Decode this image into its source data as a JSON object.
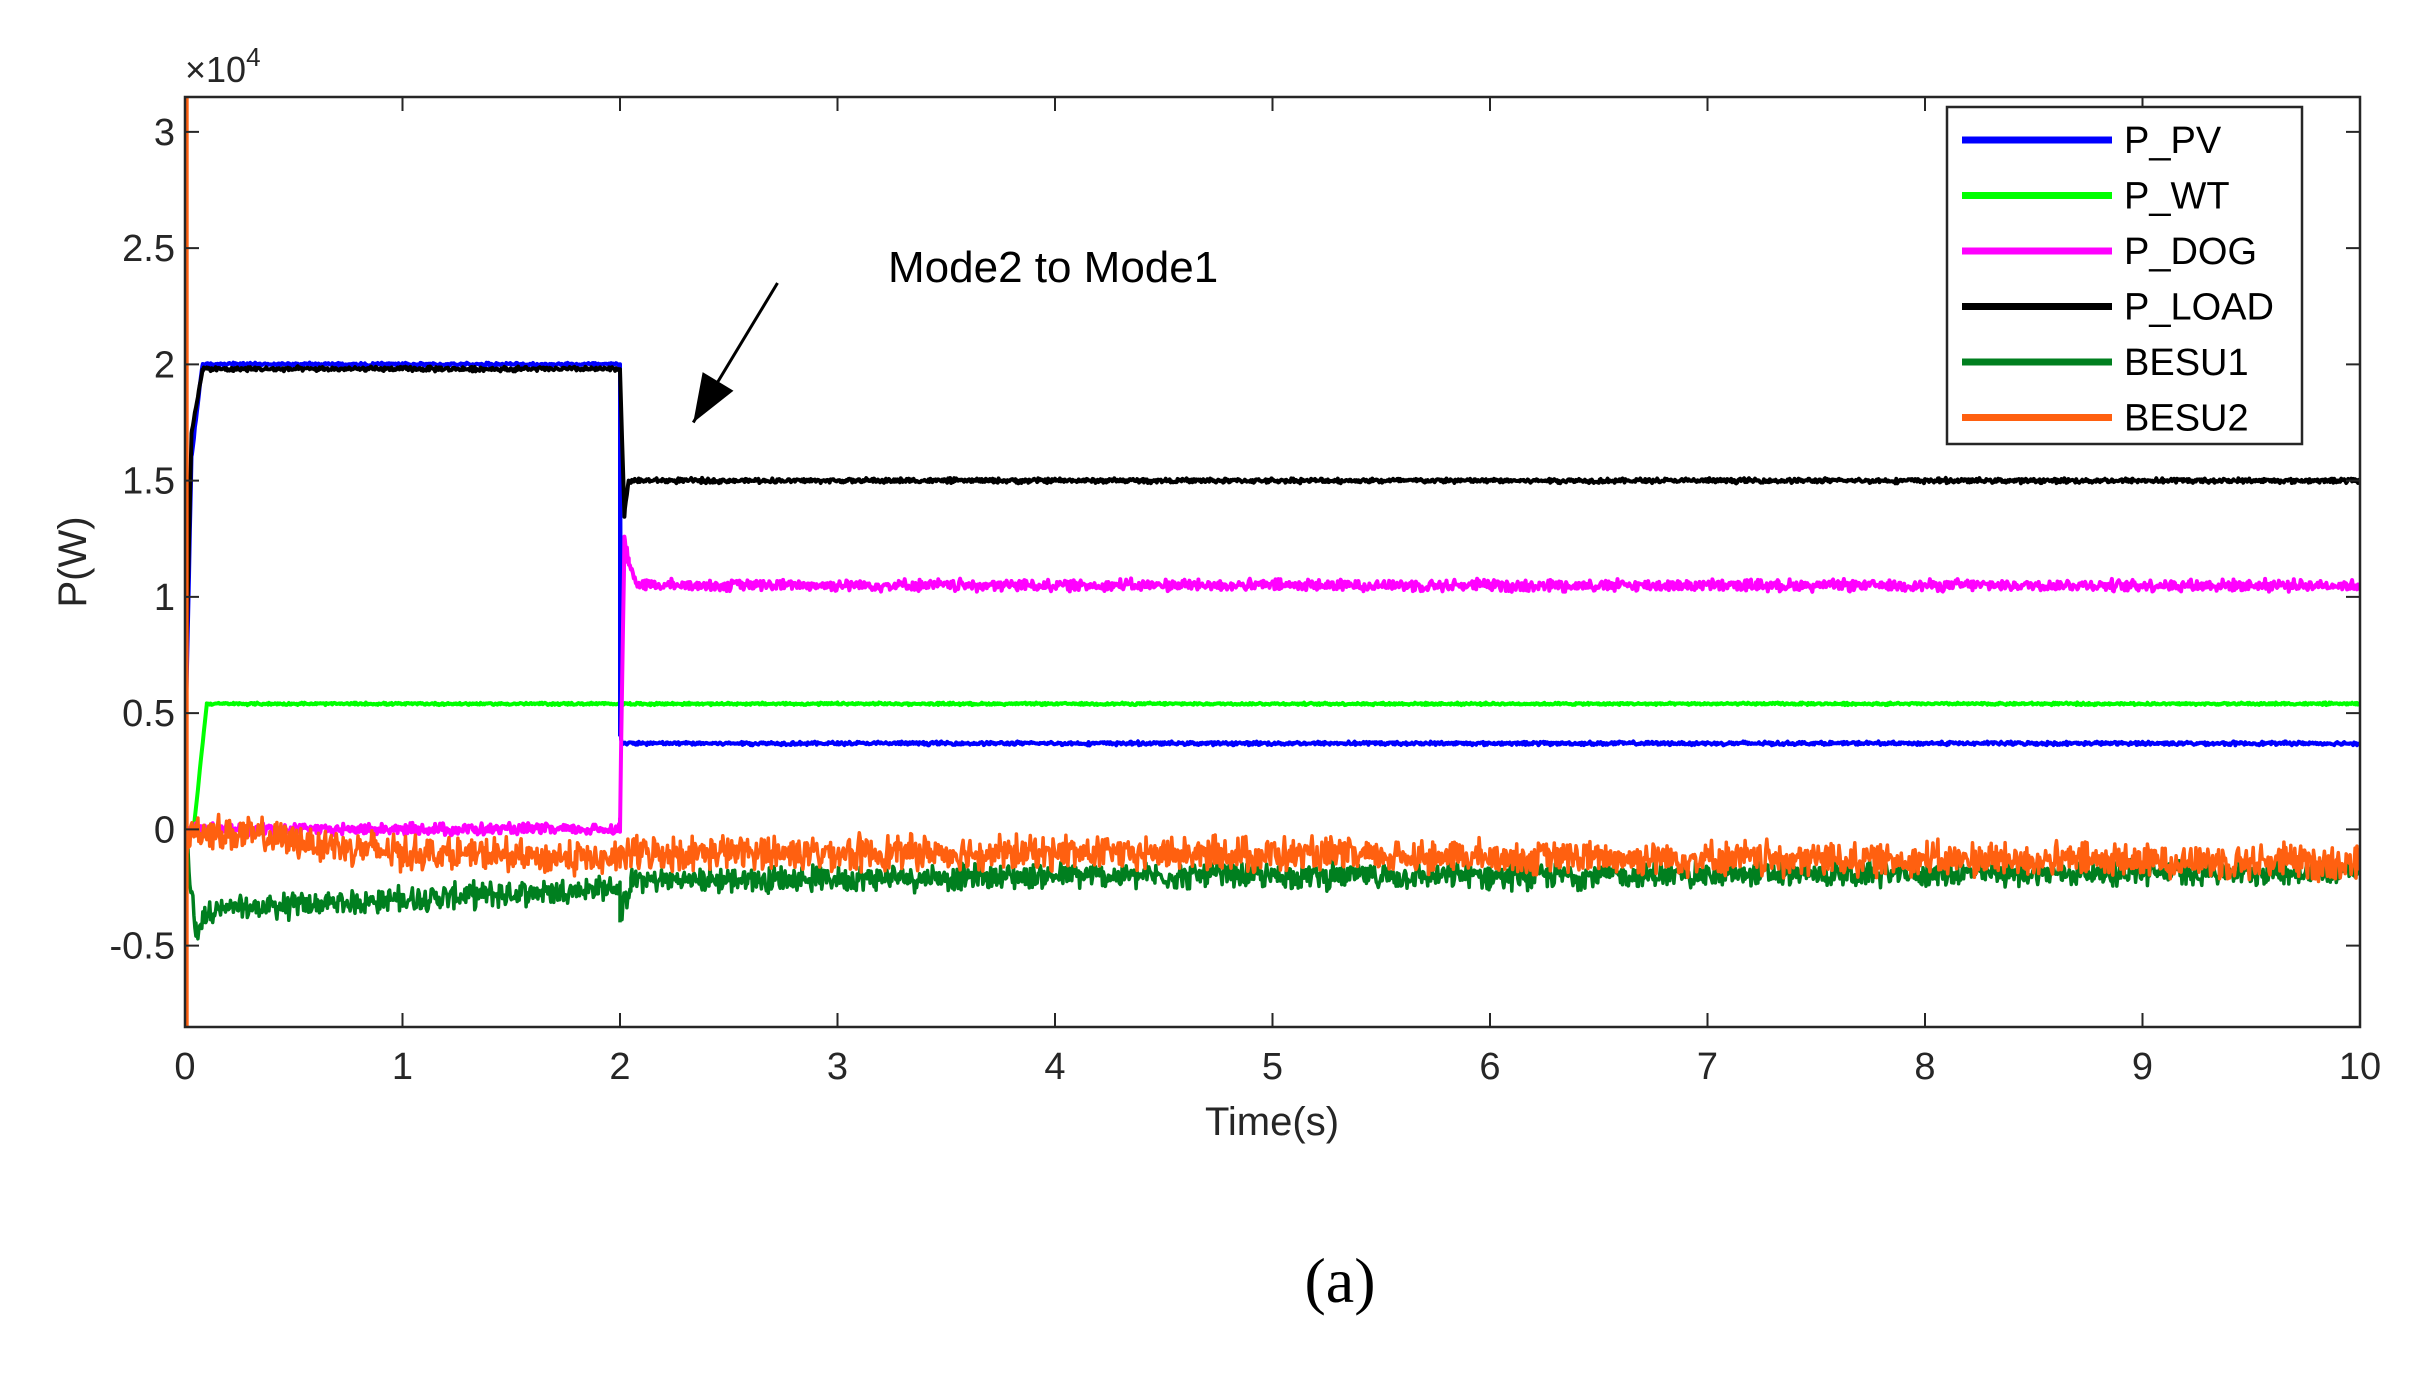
{
  "chart_data": {
    "type": "line",
    "title": "",
    "xlabel": "Time(s)",
    "ylabel": "P(W)",
    "y_exponent_label": "×10",
    "y_exponent_power": "4",
    "xlim": [
      0,
      10
    ],
    "ylim": [
      -0.85,
      3.15
    ],
    "xticks": [
      0,
      1,
      2,
      3,
      4,
      5,
      6,
      7,
      8,
      9,
      10
    ],
    "xtick_labels": [
      "0",
      "1",
      "2",
      "3",
      "4",
      "5",
      "6",
      "7",
      "8",
      "9",
      "10"
    ],
    "yticks": [
      -0.5,
      0,
      0.5,
      1,
      1.5,
      2,
      2.5,
      3
    ],
    "ytick_labels": [
      "-0.5",
      "0",
      "0.5",
      "1",
      "1.5",
      "2",
      "2.5",
      "3"
    ],
    "grid": false,
    "legend_position": "top-right",
    "annotation": {
      "text": "Mode2 to Mode1",
      "arrow_from": [
        3.0,
        2.35
      ],
      "arrow_to": [
        2.3,
        1.75
      ]
    },
    "caption": "(a)",
    "series": [
      {
        "name": "P_PV",
        "color": "#0000ff",
        "noise": 0.006,
        "points": [
          [
            0,
            0.3
          ],
          [
            0.03,
            1.6
          ],
          [
            0.08,
            2.0
          ],
          [
            2.0,
            2.0
          ],
          [
            2.0,
            0.4
          ],
          [
            2.01,
            0.37
          ],
          [
            10,
            0.37
          ]
        ]
      },
      {
        "name": "P_WT",
        "color": "#00ff00",
        "noise": 0.004,
        "points": [
          [
            0,
            0
          ],
          [
            0.04,
            0
          ],
          [
            0.1,
            0.54
          ],
          [
            2.0,
            0.54
          ],
          [
            2.05,
            0.54
          ],
          [
            10,
            0.54
          ]
        ]
      },
      {
        "name": "P_DOG",
        "color": "#ff00ff",
        "noise": 0.02,
        "points": [
          [
            0,
            0
          ],
          [
            2.0,
            0
          ],
          [
            2.0,
            0.05
          ],
          [
            2.02,
            1.25
          ],
          [
            2.04,
            1.15
          ],
          [
            2.08,
            1.05
          ],
          [
            10,
            1.05
          ]
        ]
      },
      {
        "name": "P_LOAD",
        "color": "#000000",
        "noise": 0.008,
        "points": [
          [
            0,
            0.5
          ],
          [
            0.03,
            1.7
          ],
          [
            0.08,
            1.98
          ],
          [
            2.0,
            1.98
          ],
          [
            2.02,
            1.35
          ],
          [
            2.04,
            1.5
          ],
          [
            10,
            1.5
          ]
        ]
      },
      {
        "name": "BESU1",
        "color": "#007f1f",
        "noise": 0.045,
        "points": [
          [
            0,
            0
          ],
          [
            0.05,
            -0.45
          ],
          [
            0.1,
            -0.35
          ],
          [
            1.0,
            -0.3
          ],
          [
            2.0,
            -0.25
          ],
          [
            2.0,
            -0.4
          ],
          [
            2.05,
            -0.22
          ],
          [
            4.0,
            -0.2
          ],
          [
            6.0,
            -0.2
          ],
          [
            10,
            -0.18
          ]
        ]
      },
      {
        "name": "BESU2",
        "color": "#ff6010",
        "noise": 0.06,
        "points": [
          [
            0,
            -0.05
          ],
          [
            0.05,
            0
          ],
          [
            1.0,
            -0.1
          ],
          [
            2.0,
            -0.13
          ],
          [
            2.05,
            -0.1
          ],
          [
            4.0,
            -0.1
          ],
          [
            6.0,
            -0.12
          ],
          [
            10,
            -0.14
          ]
        ]
      }
    ],
    "initial_spike": {
      "color": "#ff6010",
      "y_top": 3.15,
      "y_bottom": -0.85,
      "x": 0.01
    }
  }
}
